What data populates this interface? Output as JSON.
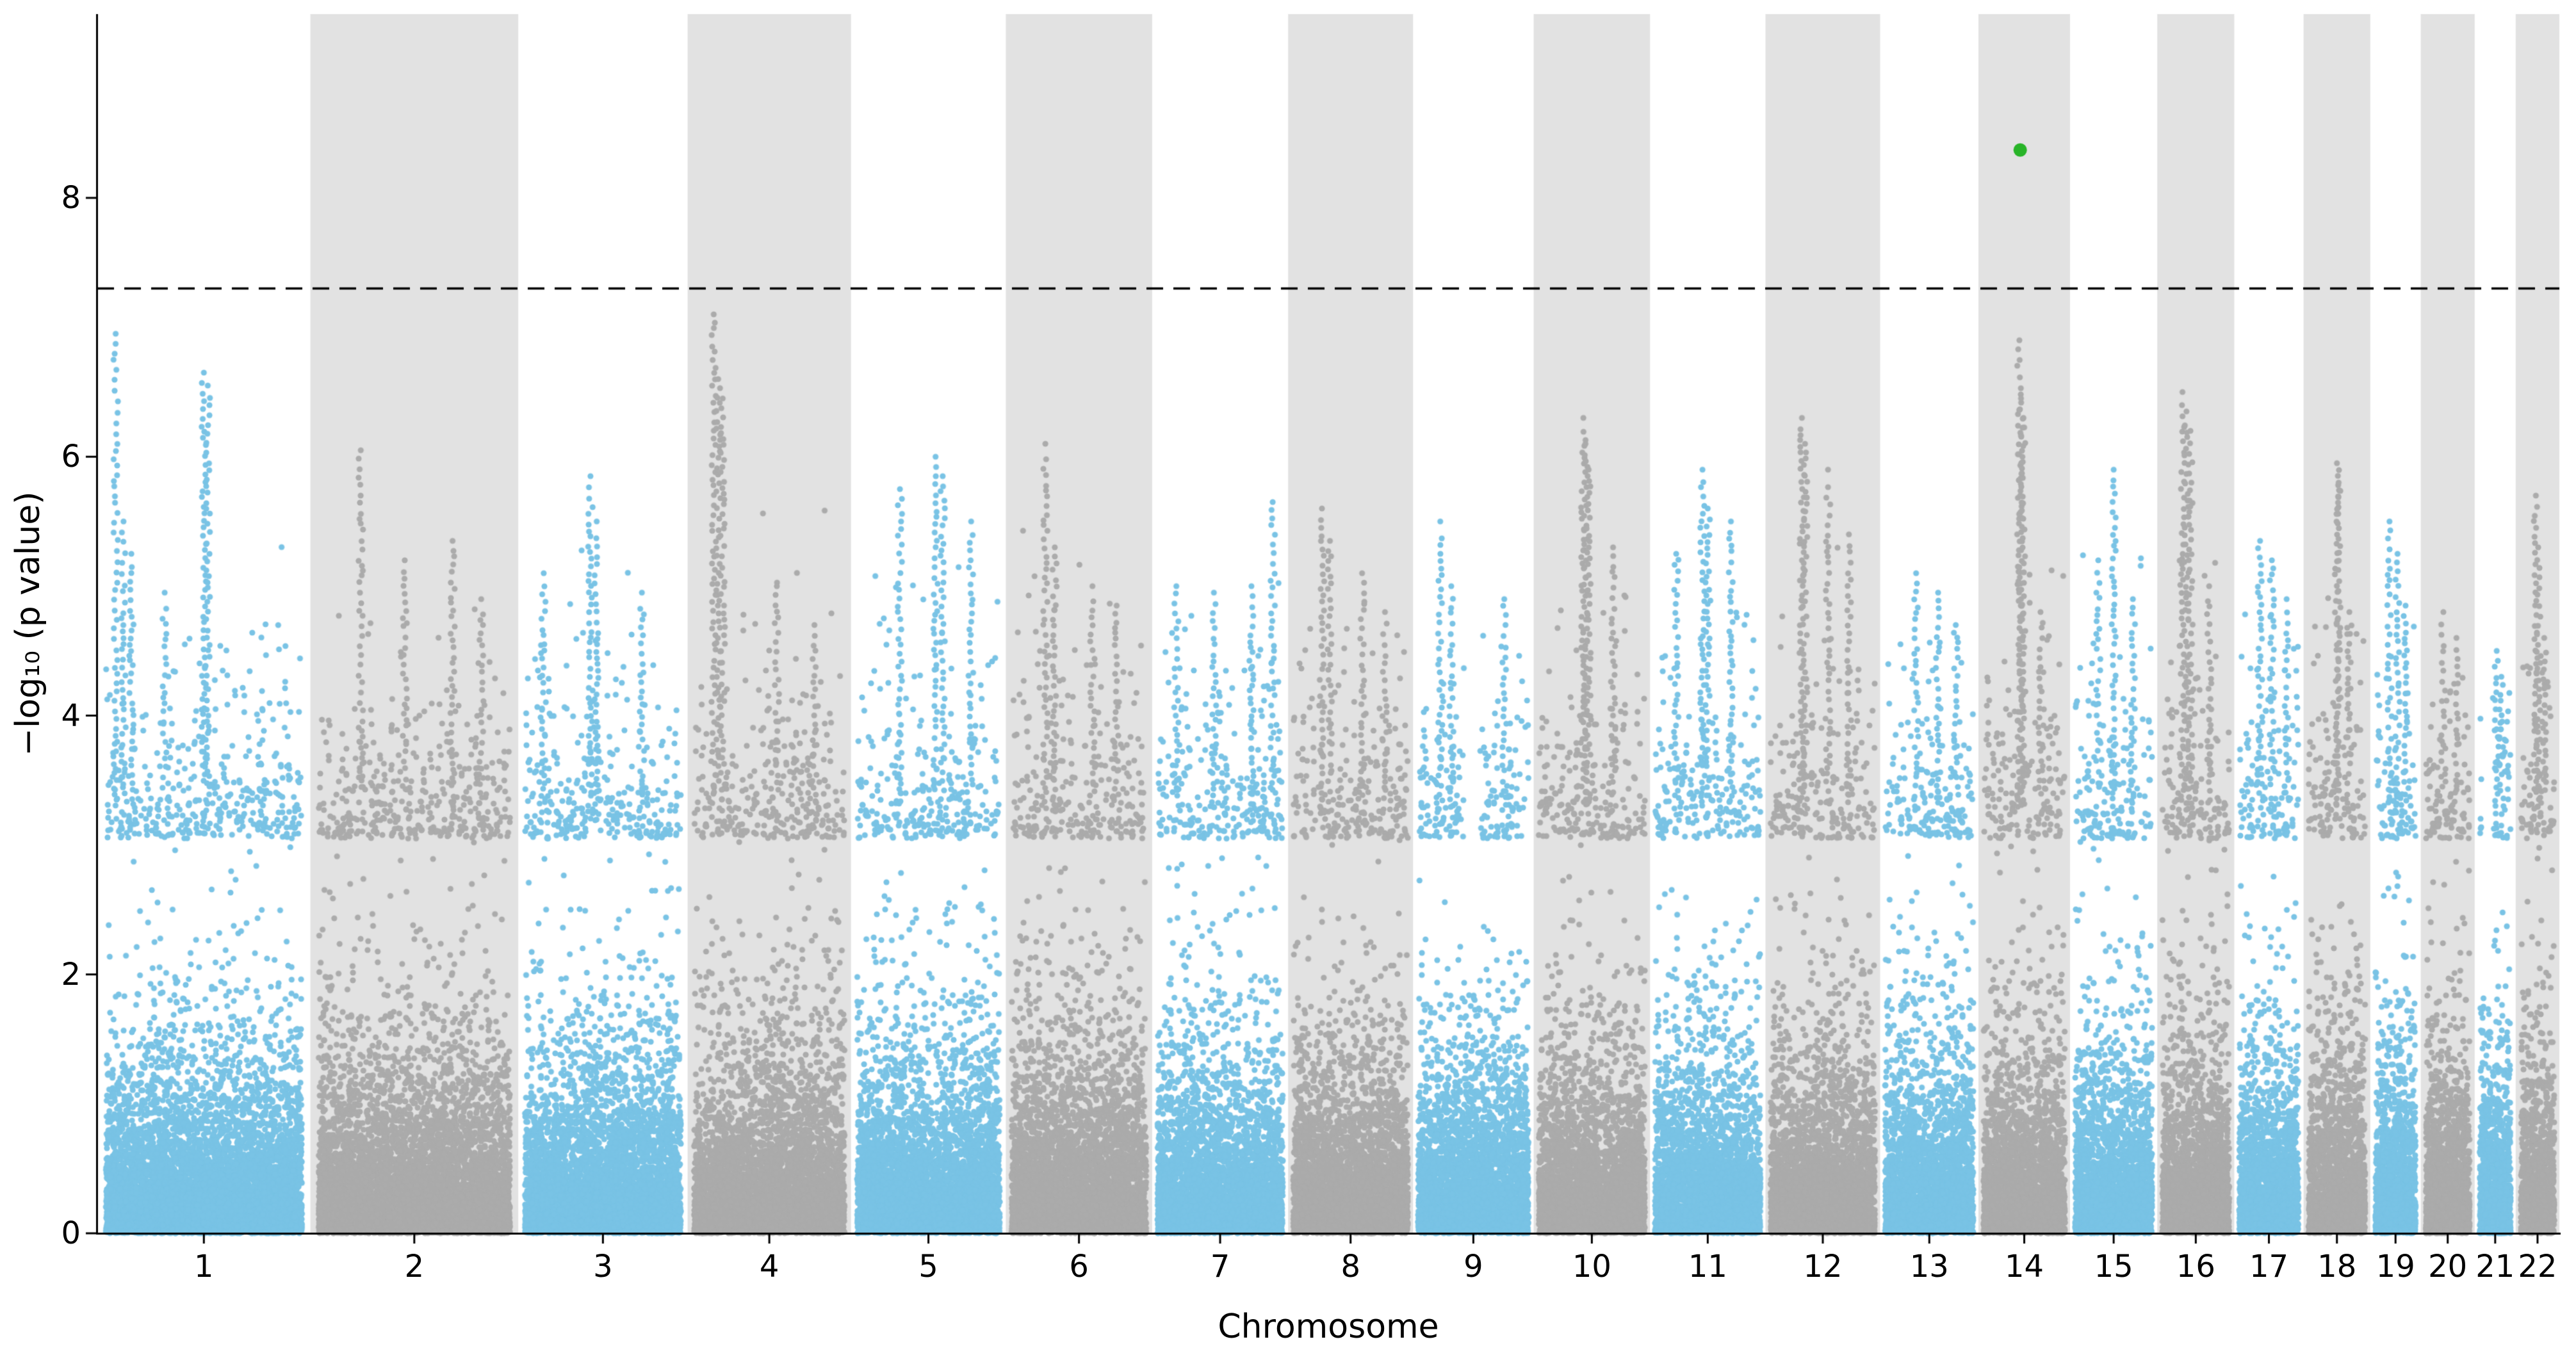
{
  "chart_data": {
    "type": "scatter",
    "variant": "manhattan-plot",
    "title": "",
    "xlabel": "Chromosome",
    "ylabel": "−log₁₀ (p value)",
    "yticks": [
      0,
      2,
      4,
      6,
      8
    ],
    "ylim": [
      0,
      9.42
    ],
    "grid": false,
    "legend": "none",
    "significance_line": {
      "y": 7.3,
      "style": "dashed",
      "color": "#000000"
    },
    "highlight_point": {
      "chromosome": "14",
      "pos": 0.45,
      "value": 8.37,
      "color": "#28b428"
    },
    "colors": {
      "odd_points": "#79c3e5",
      "even_points": "#ababab",
      "even_band": "#e2e2e2",
      "axis": "#000000",
      "background": "#ffffff"
    },
    "chromosomes": [
      {
        "label": "1",
        "size": 249,
        "peaks": [
          [
            0.05,
            6.95
          ],
          [
            0.09,
            5.5
          ],
          [
            0.13,
            5.25
          ],
          [
            0.3,
            4.95
          ],
          [
            0.5,
            6.65
          ],
          [
            0.52,
            6.55
          ]
        ]
      },
      {
        "label": "2",
        "size": 243,
        "peaks": [
          [
            0.22,
            6.05
          ],
          [
            0.45,
            5.2
          ],
          [
            0.7,
            5.35
          ],
          [
            0.85,
            4.9
          ]
        ]
      },
      {
        "label": "3",
        "size": 198,
        "peaks": [
          [
            0.12,
            5.1
          ],
          [
            0.42,
            5.85
          ],
          [
            0.46,
            5.5
          ],
          [
            0.75,
            4.95
          ]
        ]
      },
      {
        "label": "4",
        "size": 191,
        "peaks": [
          [
            0.13,
            7.1
          ],
          [
            0.16,
            6.6
          ],
          [
            0.19,
            6.45
          ],
          [
            0.55,
            5.0
          ],
          [
            0.8,
            4.7
          ]
        ]
      },
      {
        "label": "5",
        "size": 181,
        "peaks": [
          [
            0.3,
            5.75
          ],
          [
            0.55,
            6.0
          ],
          [
            0.6,
            5.85
          ],
          [
            0.8,
            5.5
          ]
        ]
      },
      {
        "label": "6",
        "size": 171,
        "peaks": [
          [
            0.25,
            6.1
          ],
          [
            0.32,
            5.3
          ],
          [
            0.6,
            5.0
          ],
          [
            0.78,
            4.85
          ]
        ]
      },
      {
        "label": "7",
        "size": 159,
        "peaks": [
          [
            0.15,
            5.0
          ],
          [
            0.45,
            4.95
          ],
          [
            0.75,
            5.0
          ],
          [
            0.92,
            5.65
          ]
        ]
      },
      {
        "label": "8",
        "size": 146,
        "peaks": [
          [
            0.25,
            5.6
          ],
          [
            0.32,
            5.35
          ],
          [
            0.6,
            5.1
          ],
          [
            0.8,
            4.8
          ]
        ]
      },
      {
        "label": "9",
        "size": 141,
        "peaks": [
          [
            0.2,
            5.5
          ],
          [
            0.3,
            5.0
          ],
          [
            0.78,
            4.9
          ]
        ],
        "gap": [
          0.42,
          0.56
        ],
        "gap_max": 1.85
      },
      {
        "label": "10",
        "size": 136,
        "peaks": [
          [
            0.42,
            6.3
          ],
          [
            0.44,
            6.1
          ],
          [
            0.47,
            5.9
          ],
          [
            0.7,
            5.3
          ]
        ]
      },
      {
        "label": "11",
        "size": 135,
        "peaks": [
          [
            0.2,
            5.25
          ],
          [
            0.45,
            5.9
          ],
          [
            0.5,
            5.6
          ],
          [
            0.72,
            5.5
          ]
        ]
      },
      {
        "label": "12",
        "size": 134,
        "peaks": [
          [
            0.3,
            6.3
          ],
          [
            0.33,
            6.1
          ],
          [
            0.55,
            5.9
          ],
          [
            0.75,
            5.4
          ]
        ]
      },
      {
        "label": "13",
        "size": 115,
        "peaks": [
          [
            0.35,
            5.1
          ],
          [
            0.6,
            4.95
          ],
          [
            0.8,
            4.7
          ]
        ]
      },
      {
        "label": "14",
        "size": 107,
        "peaks": [
          [
            0.44,
            6.9
          ],
          [
            0.46,
            6.45
          ],
          [
            0.49,
            6.3
          ],
          [
            0.7,
            4.8
          ]
        ]
      },
      {
        "label": "15",
        "size": 102,
        "peaks": [
          [
            0.3,
            5.2
          ],
          [
            0.5,
            5.9
          ],
          [
            0.75,
            4.9
          ]
        ]
      },
      {
        "label": "16",
        "size": 90,
        "peaks": [
          [
            0.3,
            6.5
          ],
          [
            0.36,
            6.35
          ],
          [
            0.42,
            6.2
          ],
          [
            0.7,
            5.0
          ]
        ]
      },
      {
        "label": "17",
        "size": 81,
        "peaks": [
          [
            0.35,
            5.35
          ],
          [
            0.55,
            5.2
          ],
          [
            0.8,
            4.9
          ]
        ]
      },
      {
        "label": "18",
        "size": 78,
        "peaks": [
          [
            0.5,
            5.95
          ],
          [
            0.53,
            5.8
          ],
          [
            0.72,
            4.8
          ]
        ]
      },
      {
        "label": "19",
        "size": 59,
        "peaks": [
          [
            0.35,
            5.5
          ],
          [
            0.55,
            5.25
          ],
          [
            0.75,
            4.85
          ]
        ]
      },
      {
        "label": "20",
        "size": 63,
        "peaks": [
          [
            0.4,
            4.8
          ],
          [
            0.7,
            4.6
          ]
        ]
      },
      {
        "label": "21",
        "size": 48,
        "peaks": [
          [
            0.55,
            4.5
          ],
          [
            0.7,
            4.3
          ]
        ],
        "gap": [
          0.05,
          0.42
        ],
        "gap_max": 1.9
      },
      {
        "label": "22",
        "size": 51,
        "peaks": [
          [
            0.45,
            5.7
          ],
          [
            0.52,
            5.3
          ],
          [
            0.7,
            4.6
          ]
        ]
      }
    ]
  }
}
